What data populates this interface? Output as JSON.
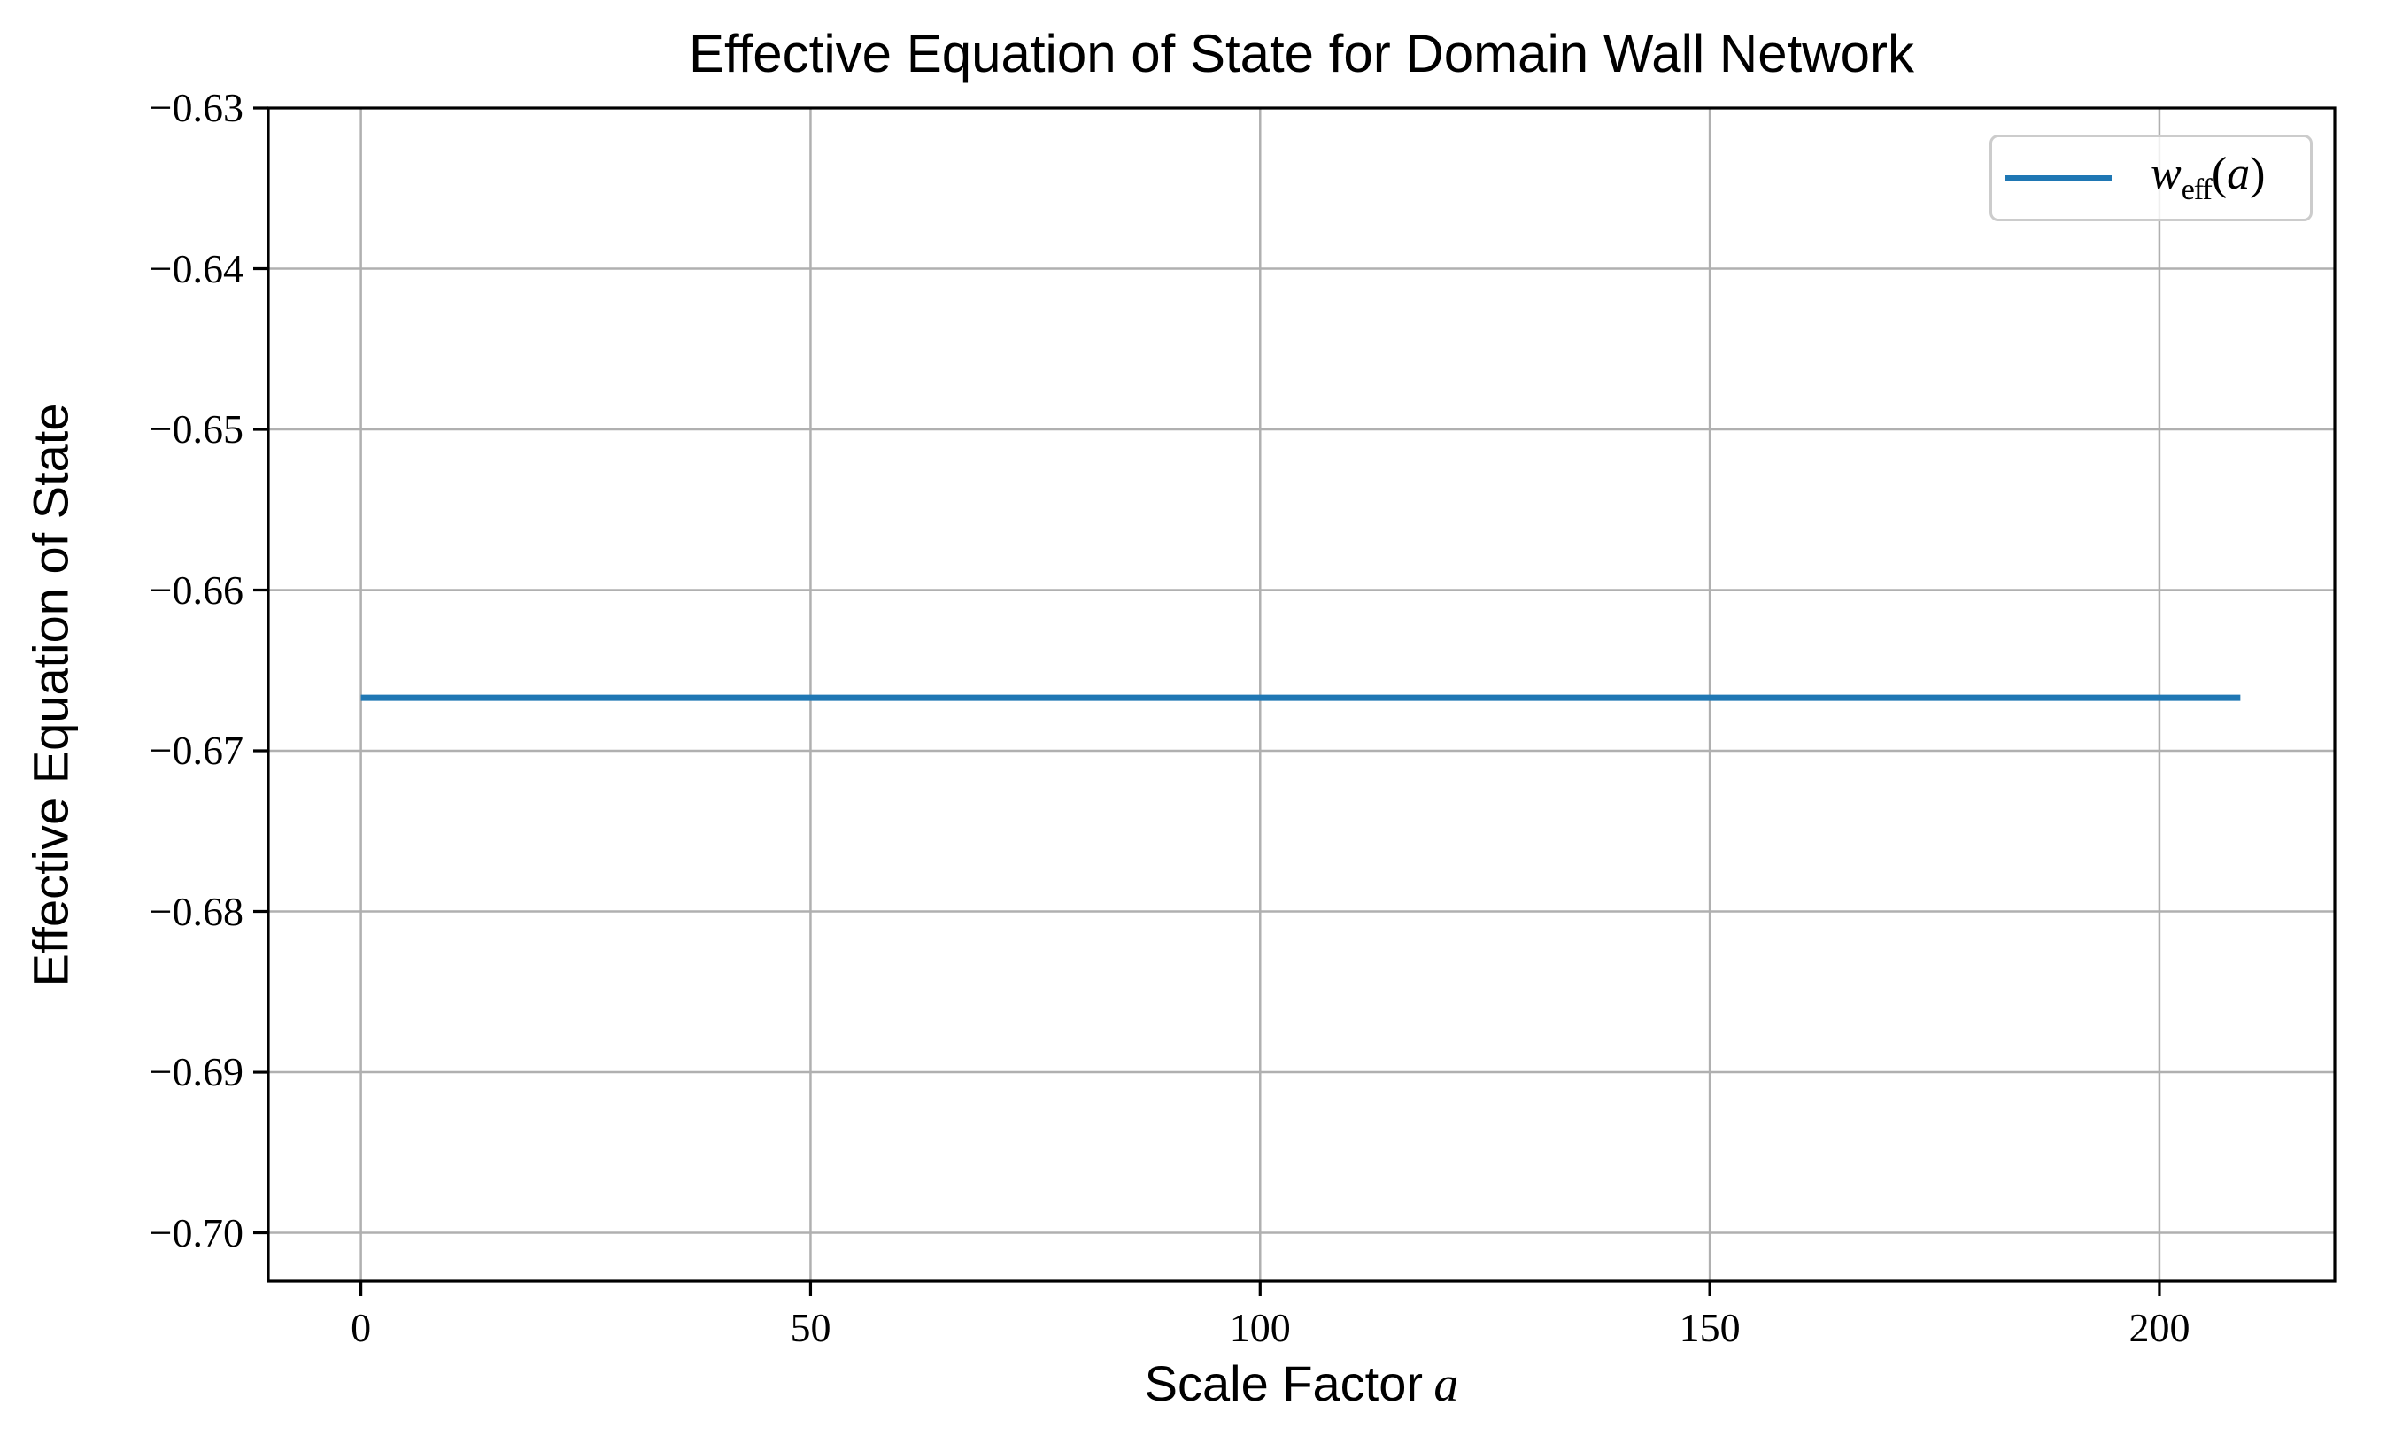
{
  "figure": {
    "title": "Effective Equation of State for Domain Wall Network"
  },
  "axis_labels": {
    "ylabel": "Effective Equation of State",
    "xlabel_text": "Scale Factor",
    "xlabel_var": "a"
  },
  "legend": {
    "location": "upper right",
    "swatch_color": "#1f77b4",
    "label_w": "w",
    "label_sub": "eff",
    "label_open": "(",
    "label_var": "a",
    "label_close": ")"
  },
  "chart_data": {
    "type": "line",
    "title": "Effective Equation of State for Domain Wall Network",
    "xlabel": "Scale Factor a",
    "ylabel": "Effective Equation of State",
    "xlim": [
      -10.3,
      219.5
    ],
    "ylim": [
      -0.703,
      -0.63
    ],
    "xticks": [
      0,
      50,
      100,
      150,
      200
    ],
    "xtick_labels": [
      "0",
      "50",
      "100",
      "150",
      "200"
    ],
    "yticks": [
      -0.63,
      -0.64,
      -0.65,
      -0.66,
      -0.67,
      -0.68,
      -0.69,
      -0.7
    ],
    "ytick_labels": [
      "−0.63",
      "−0.64",
      "−0.65",
      "−0.66",
      "−0.67",
      "−0.68",
      "−0.69",
      "−0.70"
    ],
    "grid": true,
    "grid_color": "#b0b0b0",
    "spine_color": "#000000",
    "legend_entries": [
      {
        "label": "w_eff(a)",
        "color": "#1f77b4"
      }
    ],
    "series": [
      {
        "name": "w_eff(a)",
        "color": "#1f77b4",
        "x": [
          0,
          209
        ],
        "y": [
          -0.6667,
          -0.6667
        ]
      }
    ]
  }
}
